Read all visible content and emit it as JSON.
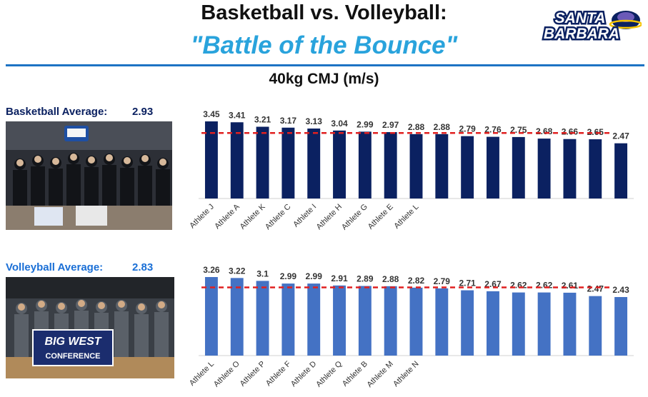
{
  "header": {
    "title": "Basketball vs. Volleyball:",
    "subtitle": "\"Battle of the Bounce\"",
    "metric": "40kg CMJ (m/s)",
    "logo_text_line1": "SANTA",
    "logo_text_line2": "BARBARA"
  },
  "basketball": {
    "average_label": "Basketball Average:",
    "average_value": "2.93"
  },
  "volleyball": {
    "average_label": "Volleyball Average:",
    "average_value": "2.83",
    "banner_line1": "BIG WEST",
    "banner_line2": "CONFERENCE"
  },
  "colors": {
    "basketball_bar": "#0b2161",
    "volleyball_bar": "#4472c4",
    "average_line": "#e02020",
    "accent": "#29a3dc"
  },
  "chart_data": [
    {
      "type": "bar",
      "categories": [
        "Athlete J",
        "Athlete A",
        "Athlete K",
        "Athlete C",
        "Athlete I",
        "Athlete H",
        "Athlete G",
        "Athlete E",
        "Athlete L",
        "",
        "",
        "",
        "",
        "",
        "",
        "",
        ""
      ],
      "values": [
        3.45,
        3.41,
        3.21,
        3.17,
        3.13,
        3.04,
        2.99,
        2.97,
        2.88,
        2.88,
        2.79,
        2.76,
        2.75,
        2.68,
        2.66,
        2.65,
        2.47
      ],
      "data_labels": [
        "3.45",
        "3.41",
        "3.21",
        "3.17",
        "3.13",
        "3.04",
        "2.99",
        "2.97",
        "2.88",
        "2.88",
        "2.79",
        "2.76",
        "2.75",
        "2.68",
        "2.66",
        "2.65",
        "2.47"
      ],
      "average": 2.93,
      "ylim": [
        0,
        3.45
      ],
      "grid": false,
      "title": "",
      "xlabel": "",
      "ylabel": ""
    },
    {
      "type": "bar",
      "categories": [
        "Athlete L",
        "Athlete O",
        "Athlete P",
        "Athlete F",
        "Athlete D",
        "Athlete Q",
        "Athlete B",
        "Athlete M",
        "Athlete N",
        "",
        "",
        "",
        "",
        "",
        "",
        "",
        ""
      ],
      "values": [
        3.26,
        3.22,
        3.1,
        2.99,
        2.99,
        2.91,
        2.89,
        2.88,
        2.82,
        2.79,
        2.71,
        2.67,
        2.62,
        2.62,
        2.61,
        2.47,
        2.43
      ],
      "data_labels": [
        "3.26",
        "3.22",
        "3.1",
        "2.99",
        "2.99",
        "2.91",
        "2.89",
        "2.88",
        "2.82",
        "2.79",
        "2.71",
        "2.67",
        "2.62",
        "2.62",
        "2.61",
        "2.47",
        "2.43"
      ],
      "average": 2.83,
      "ylim": [
        0,
        3.26
      ],
      "grid": false,
      "title": "",
      "xlabel": "",
      "ylabel": ""
    }
  ]
}
